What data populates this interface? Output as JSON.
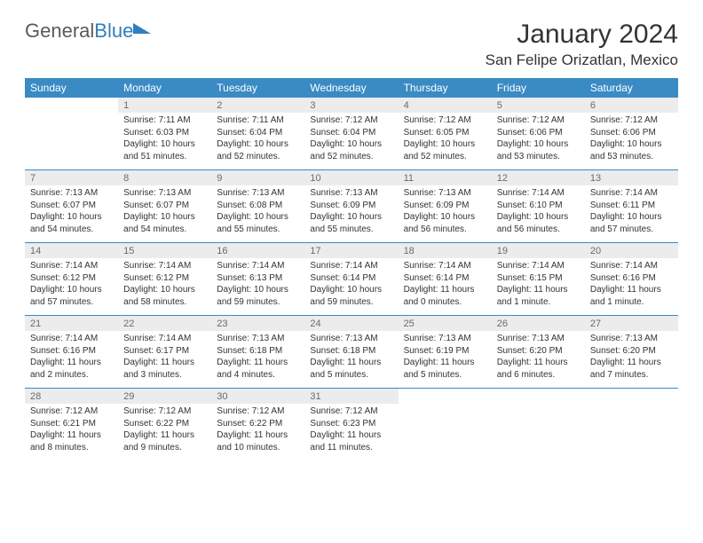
{
  "brand": {
    "part1": "General",
    "part2": "Blue"
  },
  "title": "January 2024",
  "location": "San Felipe Orizatlan, Mexico",
  "colors": {
    "accent": "#3a8ac4",
    "logo_blue": "#2f7fbf",
    "daynum_bg": "#ececec",
    "daynum_text": "#6a6a6a",
    "body_text": "#333333",
    "bg": "#ffffff"
  },
  "typography": {
    "title_fontsize": 30,
    "location_fontsize": 17,
    "dow_fontsize": 12,
    "daynum_fontsize": 11,
    "cell_fontsize": 10
  },
  "days_of_week": [
    "Sunday",
    "Monday",
    "Tuesday",
    "Wednesday",
    "Thursday",
    "Friday",
    "Saturday"
  ],
  "weeks": [
    [
      null,
      {
        "n": "1",
        "sr": "7:11 AM",
        "ss": "6:03 PM",
        "dl": "10 hours and 51 minutes."
      },
      {
        "n": "2",
        "sr": "7:11 AM",
        "ss": "6:04 PM",
        "dl": "10 hours and 52 minutes."
      },
      {
        "n": "3",
        "sr": "7:12 AM",
        "ss": "6:04 PM",
        "dl": "10 hours and 52 minutes."
      },
      {
        "n": "4",
        "sr": "7:12 AM",
        "ss": "6:05 PM",
        "dl": "10 hours and 52 minutes."
      },
      {
        "n": "5",
        "sr": "7:12 AM",
        "ss": "6:06 PM",
        "dl": "10 hours and 53 minutes."
      },
      {
        "n": "6",
        "sr": "7:12 AM",
        "ss": "6:06 PM",
        "dl": "10 hours and 53 minutes."
      }
    ],
    [
      {
        "n": "7",
        "sr": "7:13 AM",
        "ss": "6:07 PM",
        "dl": "10 hours and 54 minutes."
      },
      {
        "n": "8",
        "sr": "7:13 AM",
        "ss": "6:07 PM",
        "dl": "10 hours and 54 minutes."
      },
      {
        "n": "9",
        "sr": "7:13 AM",
        "ss": "6:08 PM",
        "dl": "10 hours and 55 minutes."
      },
      {
        "n": "10",
        "sr": "7:13 AM",
        "ss": "6:09 PM",
        "dl": "10 hours and 55 minutes."
      },
      {
        "n": "11",
        "sr": "7:13 AM",
        "ss": "6:09 PM",
        "dl": "10 hours and 56 minutes."
      },
      {
        "n": "12",
        "sr": "7:14 AM",
        "ss": "6:10 PM",
        "dl": "10 hours and 56 minutes."
      },
      {
        "n": "13",
        "sr": "7:14 AM",
        "ss": "6:11 PM",
        "dl": "10 hours and 57 minutes."
      }
    ],
    [
      {
        "n": "14",
        "sr": "7:14 AM",
        "ss": "6:12 PM",
        "dl": "10 hours and 57 minutes."
      },
      {
        "n": "15",
        "sr": "7:14 AM",
        "ss": "6:12 PM",
        "dl": "10 hours and 58 minutes."
      },
      {
        "n": "16",
        "sr": "7:14 AM",
        "ss": "6:13 PM",
        "dl": "10 hours and 59 minutes."
      },
      {
        "n": "17",
        "sr": "7:14 AM",
        "ss": "6:14 PM",
        "dl": "10 hours and 59 minutes."
      },
      {
        "n": "18",
        "sr": "7:14 AM",
        "ss": "6:14 PM",
        "dl": "11 hours and 0 minutes."
      },
      {
        "n": "19",
        "sr": "7:14 AM",
        "ss": "6:15 PM",
        "dl": "11 hours and 1 minute."
      },
      {
        "n": "20",
        "sr": "7:14 AM",
        "ss": "6:16 PM",
        "dl": "11 hours and 1 minute."
      }
    ],
    [
      {
        "n": "21",
        "sr": "7:14 AM",
        "ss": "6:16 PM",
        "dl": "11 hours and 2 minutes."
      },
      {
        "n": "22",
        "sr": "7:14 AM",
        "ss": "6:17 PM",
        "dl": "11 hours and 3 minutes."
      },
      {
        "n": "23",
        "sr": "7:13 AM",
        "ss": "6:18 PM",
        "dl": "11 hours and 4 minutes."
      },
      {
        "n": "24",
        "sr": "7:13 AM",
        "ss": "6:18 PM",
        "dl": "11 hours and 5 minutes."
      },
      {
        "n": "25",
        "sr": "7:13 AM",
        "ss": "6:19 PM",
        "dl": "11 hours and 5 minutes."
      },
      {
        "n": "26",
        "sr": "7:13 AM",
        "ss": "6:20 PM",
        "dl": "11 hours and 6 minutes."
      },
      {
        "n": "27",
        "sr": "7:13 AM",
        "ss": "6:20 PM",
        "dl": "11 hours and 7 minutes."
      }
    ],
    [
      {
        "n": "28",
        "sr": "7:12 AM",
        "ss": "6:21 PM",
        "dl": "11 hours and 8 minutes."
      },
      {
        "n": "29",
        "sr": "7:12 AM",
        "ss": "6:22 PM",
        "dl": "11 hours and 9 minutes."
      },
      {
        "n": "30",
        "sr": "7:12 AM",
        "ss": "6:22 PM",
        "dl": "11 hours and 10 minutes."
      },
      {
        "n": "31",
        "sr": "7:12 AM",
        "ss": "6:23 PM",
        "dl": "11 hours and 11 minutes."
      },
      null,
      null,
      null
    ]
  ],
  "labels": {
    "sunrise_prefix": "Sunrise: ",
    "sunset_prefix": "Sunset: ",
    "daylight_prefix": "Daylight: "
  }
}
